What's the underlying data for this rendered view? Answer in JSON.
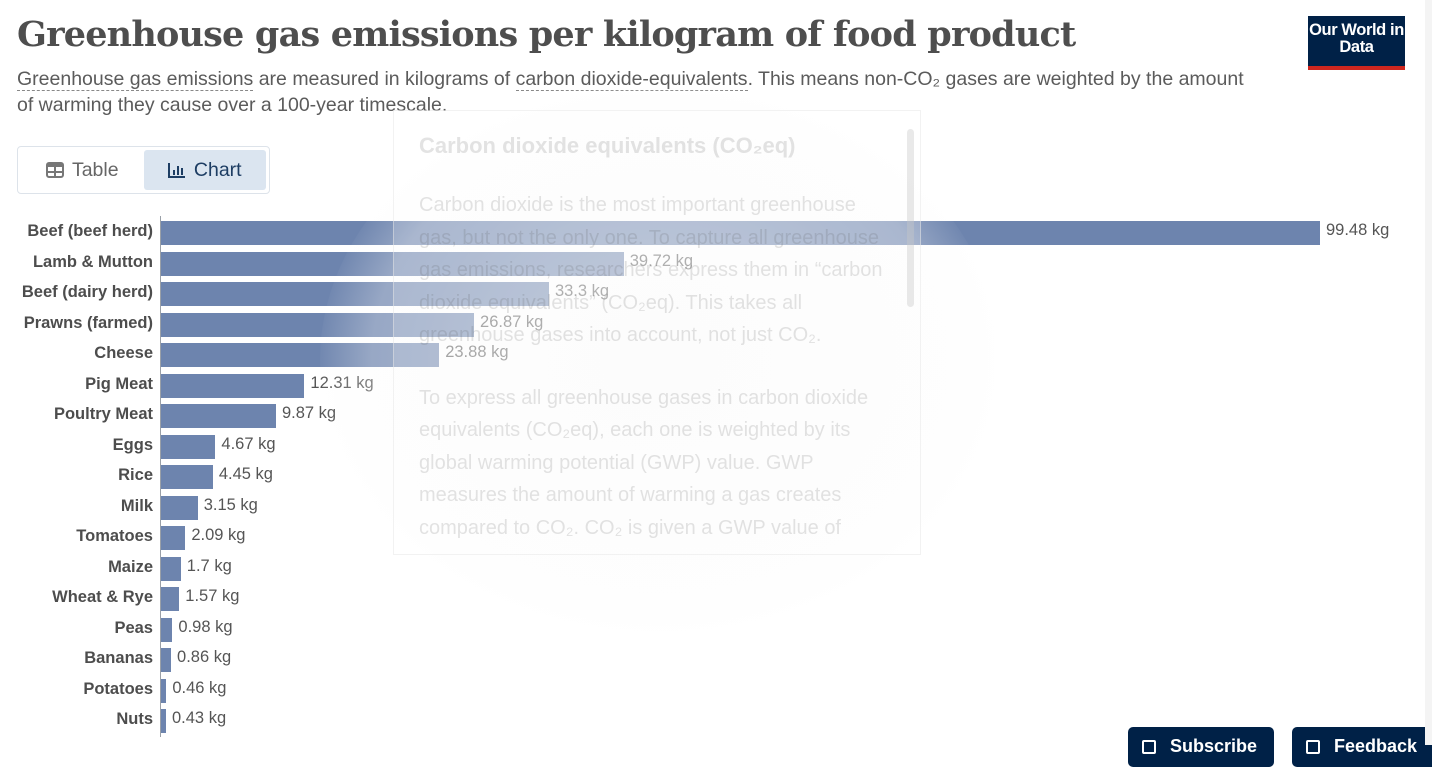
{
  "header": {
    "title": "Greenhouse gas emissions per kilogram of food product",
    "subtitle_parts": [
      "Greenhouse gas emissions",
      " are measured in kilograms of ",
      "carbon dioxide-equivalents",
      ". This means non-CO₂ gases are weighted by the amount of warming they cause over a 100-year timescale."
    ],
    "logo": "Our World in Data"
  },
  "tabs": [
    {
      "label": "Table",
      "icon": "table-icon",
      "active": false
    },
    {
      "label": "Chart",
      "icon": "bar-chart-icon",
      "active": true
    }
  ],
  "tooltip": {
    "title": "Carbon dioxide equivalents (CO₂eq)",
    "paragraphs": [
      "Carbon dioxide is the most important greenhouse gas, but not the only one. To capture all greenhouse gas emissions, researchers express them in “carbon dioxide equivalents” (CO₂eq). This takes all greenhouse gases into account, not just CO₂.",
      "To express all greenhouse gases in carbon dioxide equivalents (CO₂eq), each one is weighted by its global warming potential (GWP) value. GWP measures the amount of warming a gas creates compared to CO₂. CO₂ is given a GWP value of"
    ]
  },
  "footer_buttons": {
    "subscribe": "Subscribe",
    "feedback": "Feedback"
  },
  "colors": {
    "bar": "#6d84ae",
    "brand": "#002147",
    "brand_accent": "#ce261e"
  },
  "chart_data": {
    "type": "bar",
    "orientation": "horizontal",
    "unit": "kg",
    "categories": [
      "Beef (beef herd)",
      "Lamb & Mutton",
      "Beef (dairy herd)",
      "Prawns (farmed)",
      "Cheese",
      "Pig Meat",
      "Poultry Meat",
      "Eggs",
      "Rice",
      "Milk",
      "Tomatoes",
      "Maize",
      "Wheat & Rye",
      "Peas",
      "Bananas",
      "Potatoes",
      "Nuts"
    ],
    "values": [
      99.48,
      39.72,
      33.3,
      26.87,
      23.88,
      12.31,
      9.87,
      4.67,
      4.45,
      3.15,
      2.09,
      1.7,
      1.57,
      0.98,
      0.86,
      0.46,
      0.43
    ],
    "value_labels": [
      "99.48 kg",
      "39.72 kg",
      "33.3 kg",
      "26.87 kg",
      "23.88 kg",
      "12.31 kg",
      "9.87 kg",
      "4.67 kg",
      "4.45 kg",
      "3.15 kg",
      "2.09 kg",
      "1.7 kg",
      "1.57 kg",
      "0.98 kg",
      "0.86 kg",
      "0.46 kg",
      "0.43 kg"
    ],
    "xlim": [
      0,
      99.48
    ],
    "grid": false
  }
}
